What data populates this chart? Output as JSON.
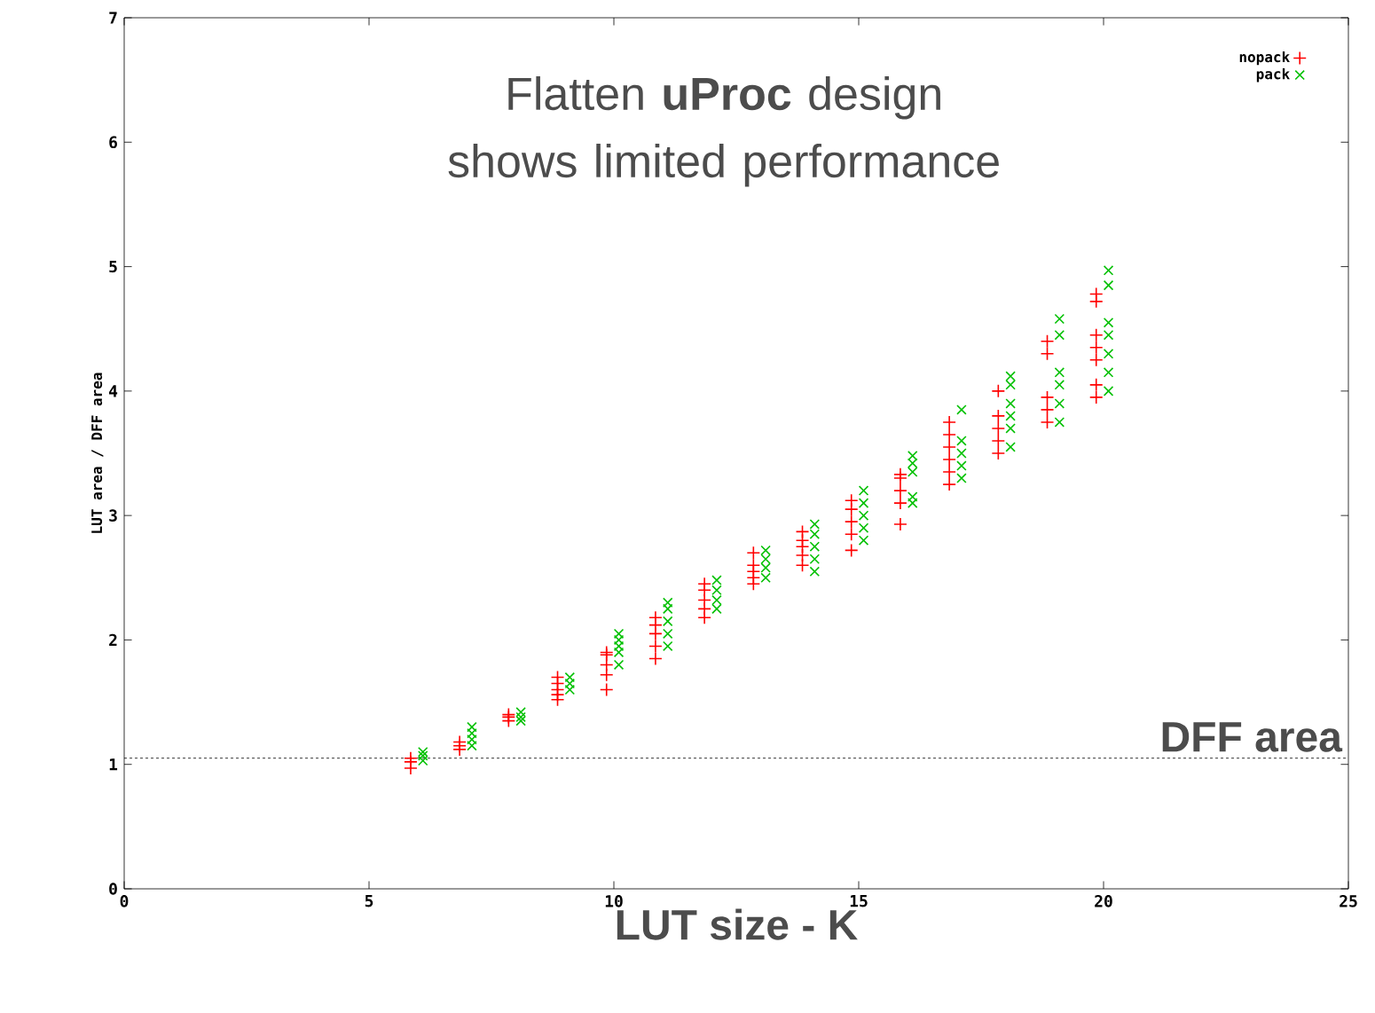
{
  "chart_data": {
    "type": "scatter",
    "xlabel": "LUT size - K",
    "ylabel": "LUT area / DFF area",
    "annotations": [
      "Flatten **uProc** design shows limited performance"
    ],
    "xlim": [
      0,
      25
    ],
    "ylim": [
      0,
      7
    ],
    "xticks": [
      0,
      5,
      10,
      15,
      20,
      25
    ],
    "yticks": [
      0,
      1,
      2,
      3,
      4,
      5,
      6,
      7
    ],
    "legend": "top right",
    "grid": false,
    "ref_lines": [
      {
        "axis": "y",
        "value": 1.05,
        "label": "DFF area",
        "line_style": "dotted",
        "color": "#000000"
      }
    ],
    "series": [
      {
        "name": "nopack",
        "color": "#ff0000",
        "marker": "plus",
        "x": [
          5.85,
          5.85,
          5.85,
          6.85,
          6.85,
          6.85,
          7.85,
          7.85,
          7.85,
          8.85,
          8.85,
          8.85,
          8.85,
          8.85,
          9.85,
          9.85,
          9.85,
          9.85,
          9.85,
          10.85,
          10.85,
          10.85,
          10.85,
          10.85,
          11.85,
          11.85,
          11.85,
          11.85,
          11.85,
          12.85,
          12.85,
          12.85,
          12.85,
          12.85,
          13.85,
          13.85,
          13.85,
          13.85,
          13.85,
          14.85,
          14.85,
          14.85,
          14.85,
          14.85,
          15.85,
          15.85,
          15.85,
          15.85,
          15.85,
          16.85,
          16.85,
          16.85,
          16.85,
          16.85,
          16.85,
          17.85,
          17.85,
          17.85,
          17.85,
          17.85,
          18.85,
          18.85,
          18.85,
          18.85,
          18.85,
          19.85,
          19.85,
          19.85,
          19.85,
          19.85,
          19.85,
          19.85
        ],
        "values": [
          0.97,
          1.02,
          1.05,
          1.12,
          1.15,
          1.18,
          1.35,
          1.38,
          1.4,
          1.52,
          1.56,
          1.6,
          1.65,
          1.7,
          1.6,
          1.72,
          1.8,
          1.88,
          1.9,
          1.85,
          1.95,
          2.05,
          2.12,
          2.18,
          2.18,
          2.25,
          2.32,
          2.4,
          2.45,
          2.45,
          2.5,
          2.55,
          2.6,
          2.7,
          2.6,
          2.68,
          2.75,
          2.8,
          2.87,
          2.72,
          2.85,
          2.95,
          3.05,
          3.12,
          2.93,
          3.1,
          3.2,
          3.3,
          3.33,
          3.25,
          3.35,
          3.45,
          3.55,
          3.65,
          3.75,
          3.5,
          3.6,
          3.7,
          3.8,
          4.0,
          3.75,
          3.85,
          3.95,
          4.3,
          4.4,
          3.95,
          4.05,
          4.25,
          4.35,
          4.45,
          4.72,
          4.78
        ]
      },
      {
        "name": "pack",
        "color": "#00c000",
        "marker": "cross",
        "x": [
          6.1,
          6.1,
          6.1,
          7.1,
          7.1,
          7.1,
          7.1,
          8.1,
          8.1,
          8.1,
          9.1,
          9.1,
          9.1,
          10.1,
          10.1,
          10.1,
          10.1,
          10.1,
          11.1,
          11.1,
          11.1,
          11.1,
          11.1,
          12.1,
          12.1,
          12.1,
          12.1,
          13.1,
          13.1,
          13.1,
          13.1,
          14.1,
          14.1,
          14.1,
          14.1,
          14.1,
          15.1,
          15.1,
          15.1,
          15.1,
          15.1,
          16.1,
          16.1,
          16.1,
          16.1,
          16.1,
          17.1,
          17.1,
          17.1,
          17.1,
          17.1,
          18.1,
          18.1,
          18.1,
          18.1,
          18.1,
          18.1,
          19.1,
          19.1,
          19.1,
          19.1,
          19.1,
          19.1,
          20.1,
          20.1,
          20.1,
          20.1,
          20.1,
          20.1,
          20.1
        ],
        "values": [
          1.03,
          1.07,
          1.1,
          1.15,
          1.2,
          1.25,
          1.3,
          1.35,
          1.38,
          1.42,
          1.6,
          1.65,
          1.7,
          1.8,
          1.9,
          1.95,
          2.0,
          2.05,
          1.95,
          2.05,
          2.15,
          2.25,
          2.3,
          2.25,
          2.32,
          2.4,
          2.48,
          2.5,
          2.58,
          2.65,
          2.72,
          2.55,
          2.65,
          2.75,
          2.85,
          2.93,
          2.8,
          2.9,
          3.0,
          3.1,
          3.2,
          3.1,
          3.15,
          3.35,
          3.42,
          3.48,
          3.3,
          3.4,
          3.5,
          3.6,
          3.85,
          3.55,
          3.7,
          3.8,
          3.9,
          4.05,
          4.12,
          3.75,
          3.9,
          4.05,
          4.15,
          4.45,
          4.58,
          4.0,
          4.15,
          4.3,
          4.45,
          4.55,
          4.85,
          4.97
        ]
      }
    ]
  }
}
